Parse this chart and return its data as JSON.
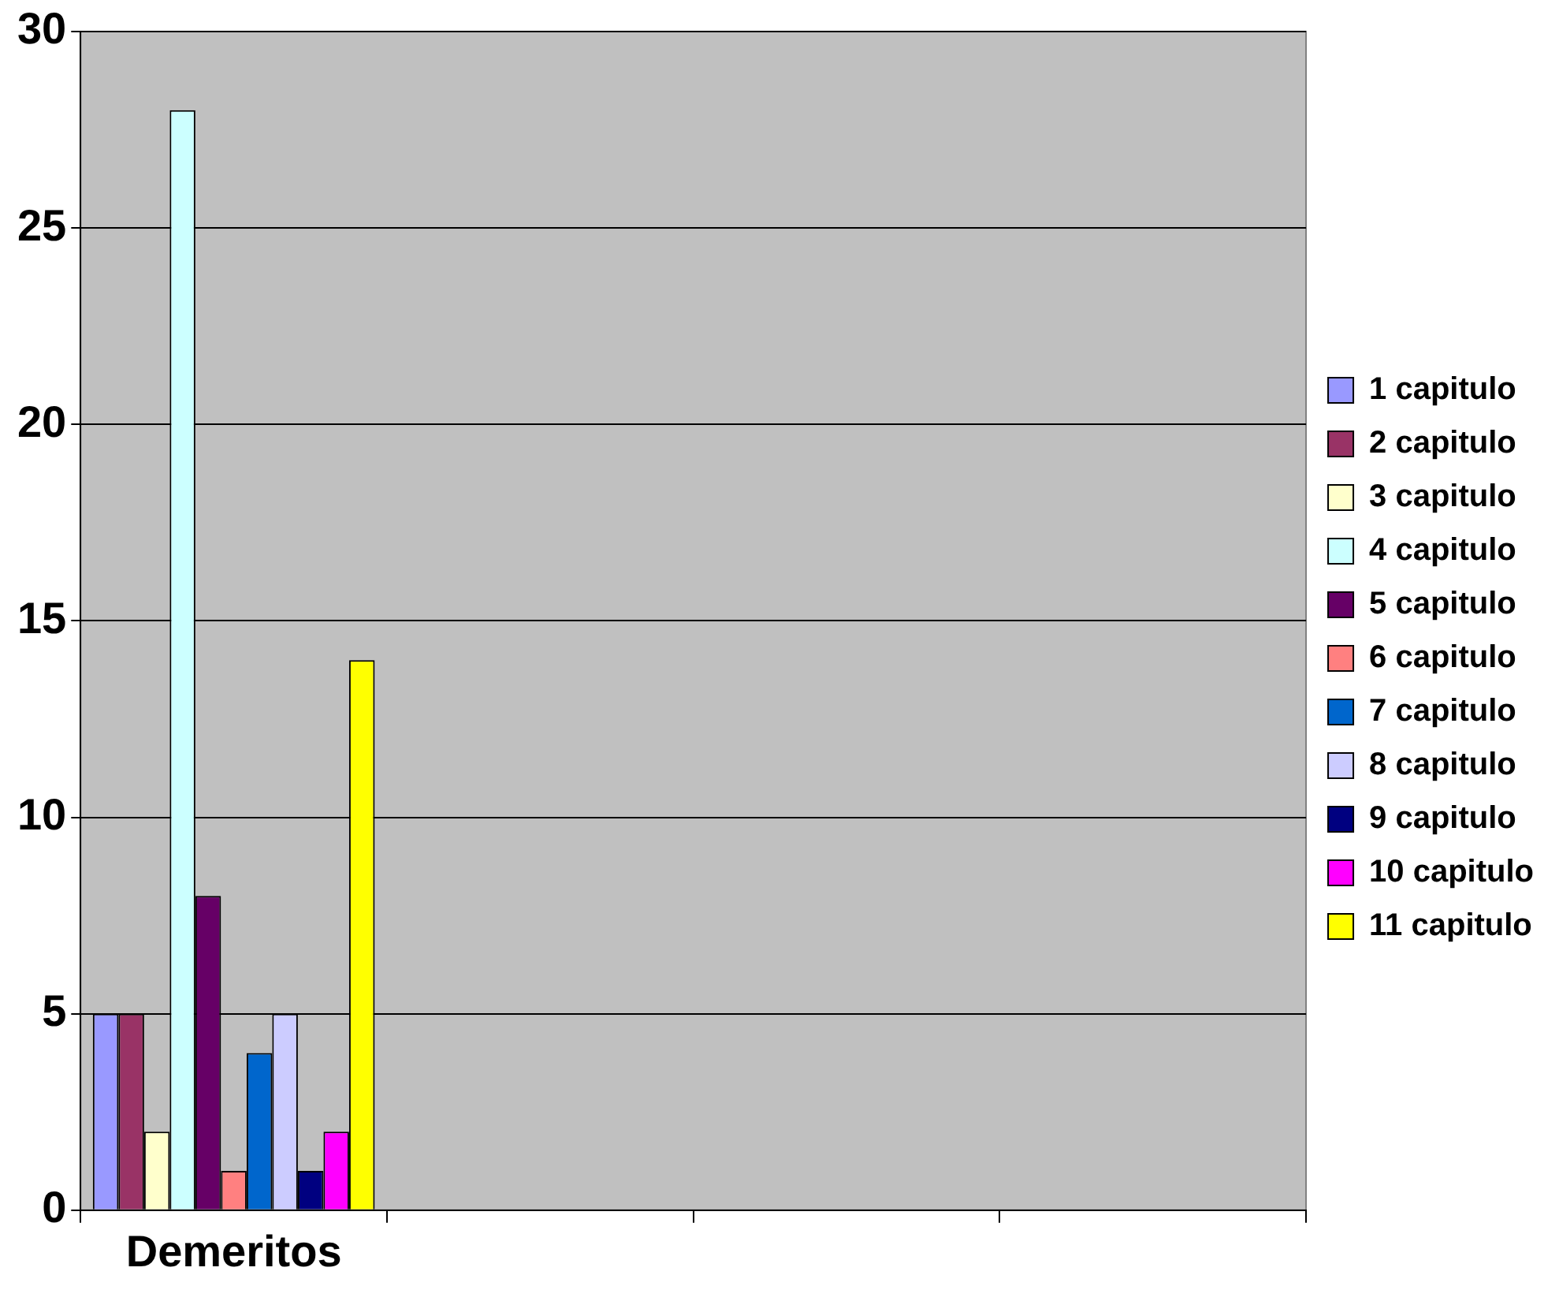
{
  "chart_data": {
    "type": "bar",
    "categories": [
      "Demeritos",
      null,
      null,
      null
    ],
    "series": [
      {
        "name": "1 capitulo",
        "color": "#9999ff",
        "values": [
          5,
          null,
          null,
          null
        ]
      },
      {
        "name": "2 capitulo",
        "color": "#993366",
        "values": [
          5,
          null,
          null,
          null
        ]
      },
      {
        "name": "3 capitulo",
        "color": "#ffffcc",
        "values": [
          2,
          null,
          null,
          null
        ]
      },
      {
        "name": "4 capitulo",
        "color": "#ccffff",
        "values": [
          28,
          null,
          null,
          null
        ]
      },
      {
        "name": "5 capitulo",
        "color": "#660066",
        "values": [
          8,
          null,
          null,
          null
        ]
      },
      {
        "name": "6 capitulo",
        "color": "#ff8080",
        "values": [
          1,
          null,
          null,
          null
        ]
      },
      {
        "name": "7 capitulo",
        "color": "#0066cc",
        "values": [
          4,
          null,
          null,
          null
        ]
      },
      {
        "name": "8 capitulo",
        "color": "#ccccff",
        "values": [
          5,
          null,
          null,
          null
        ]
      },
      {
        "name": "9 capitulo",
        "color": "#000080",
        "values": [
          1,
          null,
          null,
          null
        ]
      },
      {
        "name": "10 capitulo",
        "color": "#ff00ff",
        "values": [
          2,
          null,
          null,
          null
        ]
      },
      {
        "name": "11 capitulo",
        "color": "#ffff00",
        "values": [
          14,
          null,
          null,
          null
        ]
      }
    ],
    "ylim": [
      0,
      30
    ],
    "yticks": [
      0,
      5,
      10,
      15,
      20,
      25,
      30
    ],
    "grid": "y",
    "legend": "right"
  }
}
